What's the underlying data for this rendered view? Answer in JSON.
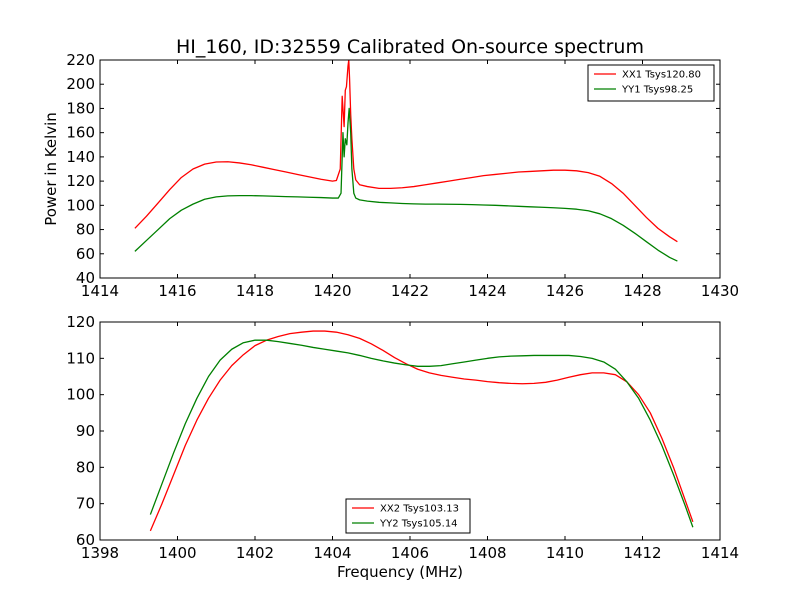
{
  "figure": {
    "title": "HI_160, ID:32559 Calibrated On-source spectrum"
  },
  "chart_data": [
    {
      "type": "line",
      "title": "HI_160, ID:32559 Calibrated On-source spectrum",
      "xlabel": "",
      "ylabel": "Power in Kelvin",
      "xlim": [
        1414,
        1430
      ],
      "ylim": [
        40,
        220
      ],
      "xticks": [
        1414,
        1416,
        1418,
        1420,
        1422,
        1424,
        1426,
        1428,
        1430
      ],
      "yticks": [
        40,
        60,
        80,
        100,
        120,
        140,
        160,
        180,
        200,
        220
      ],
      "grid": false,
      "legend": "top-right",
      "series": [
        {
          "name": "XX1 Tsys120.80",
          "color": "#ff0000",
          "x": [
            1414.9,
            1415.2,
            1415.5,
            1415.8,
            1416.1,
            1416.4,
            1416.7,
            1417.0,
            1417.3,
            1417.6,
            1417.9,
            1418.2,
            1418.5,
            1418.8,
            1419.1,
            1419.4,
            1419.7,
            1420.0,
            1420.1,
            1420.2,
            1420.25,
            1420.3,
            1420.33,
            1420.36,
            1420.4,
            1420.42,
            1420.44,
            1420.47,
            1420.5,
            1420.55,
            1420.6,
            1420.7,
            1420.9,
            1421.2,
            1421.5,
            1421.8,
            1422.1,
            1422.4,
            1422.7,
            1423.0,
            1423.3,
            1423.6,
            1423.9,
            1424.2,
            1424.5,
            1424.8,
            1425.1,
            1425.4,
            1425.7,
            1426.0,
            1426.3,
            1426.6,
            1426.9,
            1427.2,
            1427.5,
            1427.8,
            1428.1,
            1428.4,
            1428.7,
            1428.9
          ],
          "y": [
            81,
            91,
            102,
            113,
            123,
            130,
            134,
            135.8,
            136,
            135,
            133.5,
            131.5,
            129.5,
            127.5,
            125.5,
            123.5,
            121.5,
            120,
            120.5,
            130,
            190,
            165,
            195,
            198,
            215,
            220,
            205,
            175,
            155,
            130,
            121,
            117,
            115.5,
            114,
            114,
            114.5,
            115.5,
            117,
            118.5,
            120,
            121.5,
            123,
            124.5,
            125.5,
            126.5,
            127.5,
            128,
            128.5,
            129,
            129,
            128.5,
            127,
            124,
            118,
            110,
            100,
            90,
            81,
            74,
            70
          ]
        },
        {
          "name": "YY1 Tsys98.25",
          "color": "#008000",
          "x": [
            1414.9,
            1415.2,
            1415.5,
            1415.8,
            1416.1,
            1416.4,
            1416.7,
            1417.0,
            1417.3,
            1417.6,
            1417.9,
            1418.2,
            1418.5,
            1418.8,
            1419.1,
            1419.4,
            1419.7,
            1420.0,
            1420.15,
            1420.22,
            1420.27,
            1420.3,
            1420.33,
            1420.37,
            1420.4,
            1420.43,
            1420.47,
            1420.5,
            1420.55,
            1420.6,
            1420.7,
            1420.9,
            1421.2,
            1421.5,
            1421.8,
            1422.1,
            1422.4,
            1422.7,
            1423.0,
            1423.3,
            1423.6,
            1423.9,
            1424.2,
            1424.5,
            1424.8,
            1425.1,
            1425.4,
            1425.7,
            1426.0,
            1426.3,
            1426.6,
            1426.9,
            1427.2,
            1427.5,
            1427.8,
            1428.1,
            1428.4,
            1428.7,
            1428.9
          ],
          "y": [
            62,
            71,
            80,
            89,
            96,
            101,
            105,
            107,
            107.8,
            108,
            108,
            107.8,
            107.5,
            107.2,
            107,
            106.7,
            106.4,
            106,
            106,
            110,
            160,
            140,
            155,
            150,
            168,
            180,
            160,
            130,
            110,
            106,
            104.5,
            103.5,
            102.5,
            102,
            101.5,
            101.2,
            101,
            101,
            100.9,
            100.8,
            100.6,
            100.3,
            100,
            99.6,
            99.2,
            98.8,
            98.4,
            98,
            97.5,
            96.8,
            95.5,
            93,
            89,
            83.5,
            77,
            70,
            63,
            57,
            54
          ]
        }
      ]
    },
    {
      "type": "line",
      "title": "",
      "xlabel": "Frequency (MHz)",
      "ylabel": "",
      "xlim": [
        1398,
        1414
      ],
      "ylim": [
        60,
        120
      ],
      "xticks": [
        1398,
        1400,
        1402,
        1404,
        1406,
        1408,
        1410,
        1412,
        1414
      ],
      "yticks": [
        60,
        70,
        80,
        90,
        100,
        110,
        120
      ],
      "grid": false,
      "legend": "bottom-center",
      "series": [
        {
          "name": "XX2 Tsys103.13",
          "color": "#ff0000",
          "x": [
            1399.3,
            1399.6,
            1399.9,
            1400.2,
            1400.5,
            1400.8,
            1401.1,
            1401.4,
            1401.7,
            1402.0,
            1402.3,
            1402.6,
            1402.9,
            1403.2,
            1403.5,
            1403.8,
            1404.1,
            1404.4,
            1404.7,
            1405.0,
            1405.3,
            1405.6,
            1405.9,
            1406.2,
            1406.5,
            1406.8,
            1407.1,
            1407.4,
            1407.7,
            1408.0,
            1408.3,
            1408.6,
            1408.9,
            1409.2,
            1409.5,
            1409.8,
            1410.1,
            1410.4,
            1410.7,
            1411.0,
            1411.3,
            1411.6,
            1411.9,
            1412.2,
            1412.5,
            1412.8,
            1413.1,
            1413.3
          ],
          "y": [
            62.5,
            70,
            78,
            86,
            93,
            99,
            104,
            108,
            111,
            113.5,
            115,
            116,
            116.8,
            117.2,
            117.5,
            117.5,
            117.2,
            116.5,
            115.5,
            114,
            112.2,
            110.2,
            108.5,
            107,
            106,
            105.3,
            104.8,
            104.3,
            104,
            103.6,
            103.3,
            103.1,
            103,
            103.1,
            103.4,
            104,
            104.8,
            105.5,
            106,
            106,
            105.5,
            103.5,
            100,
            95,
            88,
            80,
            71,
            65
          ]
        },
        {
          "name": "YY2 Tsys105.14",
          "color": "#008000",
          "x": [
            1399.3,
            1399.6,
            1399.9,
            1400.2,
            1400.5,
            1400.8,
            1401.1,
            1401.4,
            1401.7,
            1402.0,
            1402.3,
            1402.6,
            1402.9,
            1403.2,
            1403.5,
            1403.8,
            1404.1,
            1404.4,
            1404.7,
            1405.0,
            1405.3,
            1405.6,
            1405.9,
            1406.2,
            1406.5,
            1406.8,
            1407.1,
            1407.4,
            1407.7,
            1408.0,
            1408.3,
            1408.6,
            1408.9,
            1409.2,
            1409.5,
            1409.8,
            1410.1,
            1410.4,
            1410.7,
            1411.0,
            1411.3,
            1411.6,
            1411.9,
            1412.2,
            1412.5,
            1412.8,
            1413.1,
            1413.3
          ],
          "y": [
            67,
            75.5,
            84,
            92,
            99,
            105,
            109.5,
            112.5,
            114.3,
            115,
            115,
            114.6,
            114.1,
            113.6,
            113,
            112.5,
            112,
            111.5,
            110.8,
            110,
            109.3,
            108.7,
            108.2,
            107.8,
            107.8,
            108,
            108.5,
            109,
            109.5,
            110,
            110.4,
            110.6,
            110.7,
            110.8,
            110.8,
            110.8,
            110.8,
            110.5,
            110,
            109,
            107,
            103.5,
            99,
            93,
            86,
            78,
            69.5,
            63.5
          ]
        }
      ]
    }
  ]
}
